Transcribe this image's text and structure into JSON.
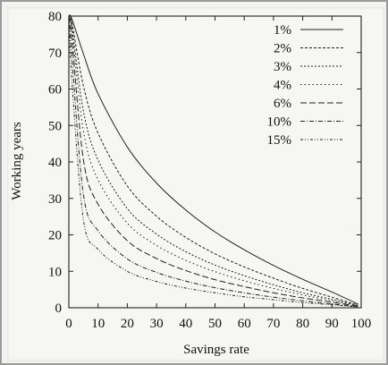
{
  "chart_data": {
    "type": "line",
    "title": "",
    "xlabel": "Savings rate",
    "ylabel": "Working years",
    "xlim": [
      0,
      100
    ],
    "ylim": [
      0,
      80
    ],
    "xticks": [
      "0",
      "10",
      "20",
      "30",
      "40",
      "50",
      "60",
      "70",
      "80",
      "90",
      "100"
    ],
    "yticks": [
      "0",
      "10",
      "20",
      "30",
      "40",
      "50",
      "60",
      "70",
      "80"
    ],
    "grid": false,
    "legend_position": "top-right",
    "series": [
      {
        "name": "1%",
        "rate": 0.01,
        "x": [
          1,
          5,
          10,
          20,
          30,
          40,
          50,
          60,
          70,
          80,
          90,
          99
        ],
        "y": [
          79.3,
          69.6,
          58.7,
          44.1,
          34.2,
          26.8,
          20.8,
          15.9,
          11.6,
          7.8,
          4.3,
          1.0
        ]
      },
      {
        "name": "2%",
        "rate": 0.02,
        "x": [
          1,
          5,
          10,
          20,
          30,
          40,
          50,
          60,
          70,
          80,
          90,
          99
        ],
        "y": [
          78.4,
          60.8,
          47.9,
          33.4,
          25.1,
          19.3,
          14.8,
          11.2,
          8.1,
          5.3,
          2.9,
          0.7
        ]
      },
      {
        "name": "3%",
        "rate": 0.03,
        "x": [
          1,
          5,
          10,
          20,
          30,
          40,
          50,
          60,
          70,
          80,
          90,
          99
        ],
        "y": [
          77.5,
          53.9,
          40.5,
          27.2,
          20.2,
          15.4,
          11.7,
          8.8,
          6.3,
          4.1,
          2.3,
          0.6
        ]
      },
      {
        "name": "4%",
        "rate": 0.04,
        "x": [
          1,
          5,
          10,
          20,
          30,
          40,
          50,
          60,
          70,
          80,
          90,
          99
        ],
        "y": [
          76.4,
          48.4,
          35.1,
          23.2,
          17.1,
          13.0,
          9.9,
          7.4,
          5.3,
          3.5,
          1.9,
          0.5
        ]
      },
      {
        "name": "6%",
        "rate": 0.06,
        "x": [
          1,
          5,
          10,
          20,
          30,
          40,
          50,
          60,
          70,
          80,
          90,
          99
        ],
        "y": [
          74.2,
          40.5,
          28.4,
          18.4,
          13.5,
          10.2,
          7.7,
          5.8,
          4.1,
          2.7,
          1.5,
          0.4
        ]
      },
      {
        "name": "10%",
        "rate": 0.1,
        "x": [
          1,
          5,
          10,
          20,
          30,
          40,
          50,
          60,
          70,
          80,
          90,
          99
        ],
        "y": [
          69.3,
          31.0,
          21.1,
          13.4,
          9.7,
          7.3,
          5.5,
          4.1,
          2.9,
          1.9,
          1.0,
          0.3
        ]
      },
      {
        "name": "15%",
        "rate": 0.15,
        "x": [
          1,
          5,
          10,
          20,
          30,
          40,
          50,
          60,
          70,
          80,
          90,
          99
        ],
        "y": [
          62.8,
          24.1,
          16.0,
          10.0,
          7.2,
          5.4,
          4.1,
          3.0,
          2.2,
          1.4,
          0.8,
          0.2
        ]
      }
    ]
  },
  "colors": {
    "ink": "#222222",
    "paper": "#f6f6f3"
  }
}
